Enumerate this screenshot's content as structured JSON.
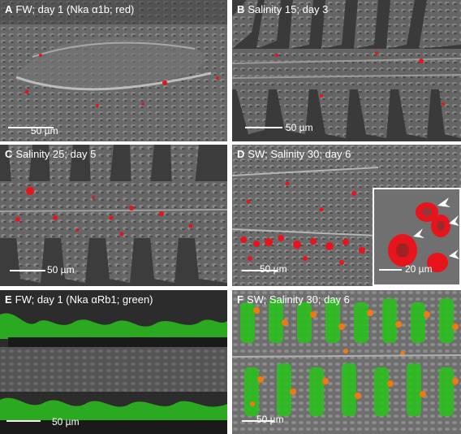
{
  "panels": {
    "A": {
      "letter": "A",
      "label": "FW; day 1 (Nka α1b; red)",
      "scale_label": "50 µm"
    },
    "B": {
      "letter": "B",
      "label": "Salinity 15; day 3",
      "scale_label": "50 µm"
    },
    "C": {
      "letter": "C",
      "label": "Salinity 25; day 5",
      "scale_label": "50 µm"
    },
    "D": {
      "letter": "D",
      "label": "SW; Salinity 30; day 6",
      "scale_label": "50 µm",
      "inset_scale_label": "20 µm"
    },
    "E": {
      "letter": "E",
      "label": "FW; day 1 (Nka αRb1; green)",
      "scale_label": "50 µm"
    },
    "F": {
      "letter": "F",
      "label": "SW; Salinity 30; day 6",
      "scale_label": "50 µm"
    }
  },
  "colors": {
    "red_signal": "#e8141c",
    "green_signal": "#2bbf1f",
    "orange_signal": "#f07a10",
    "gray_dic": "#666666",
    "text": "#ffffff"
  }
}
